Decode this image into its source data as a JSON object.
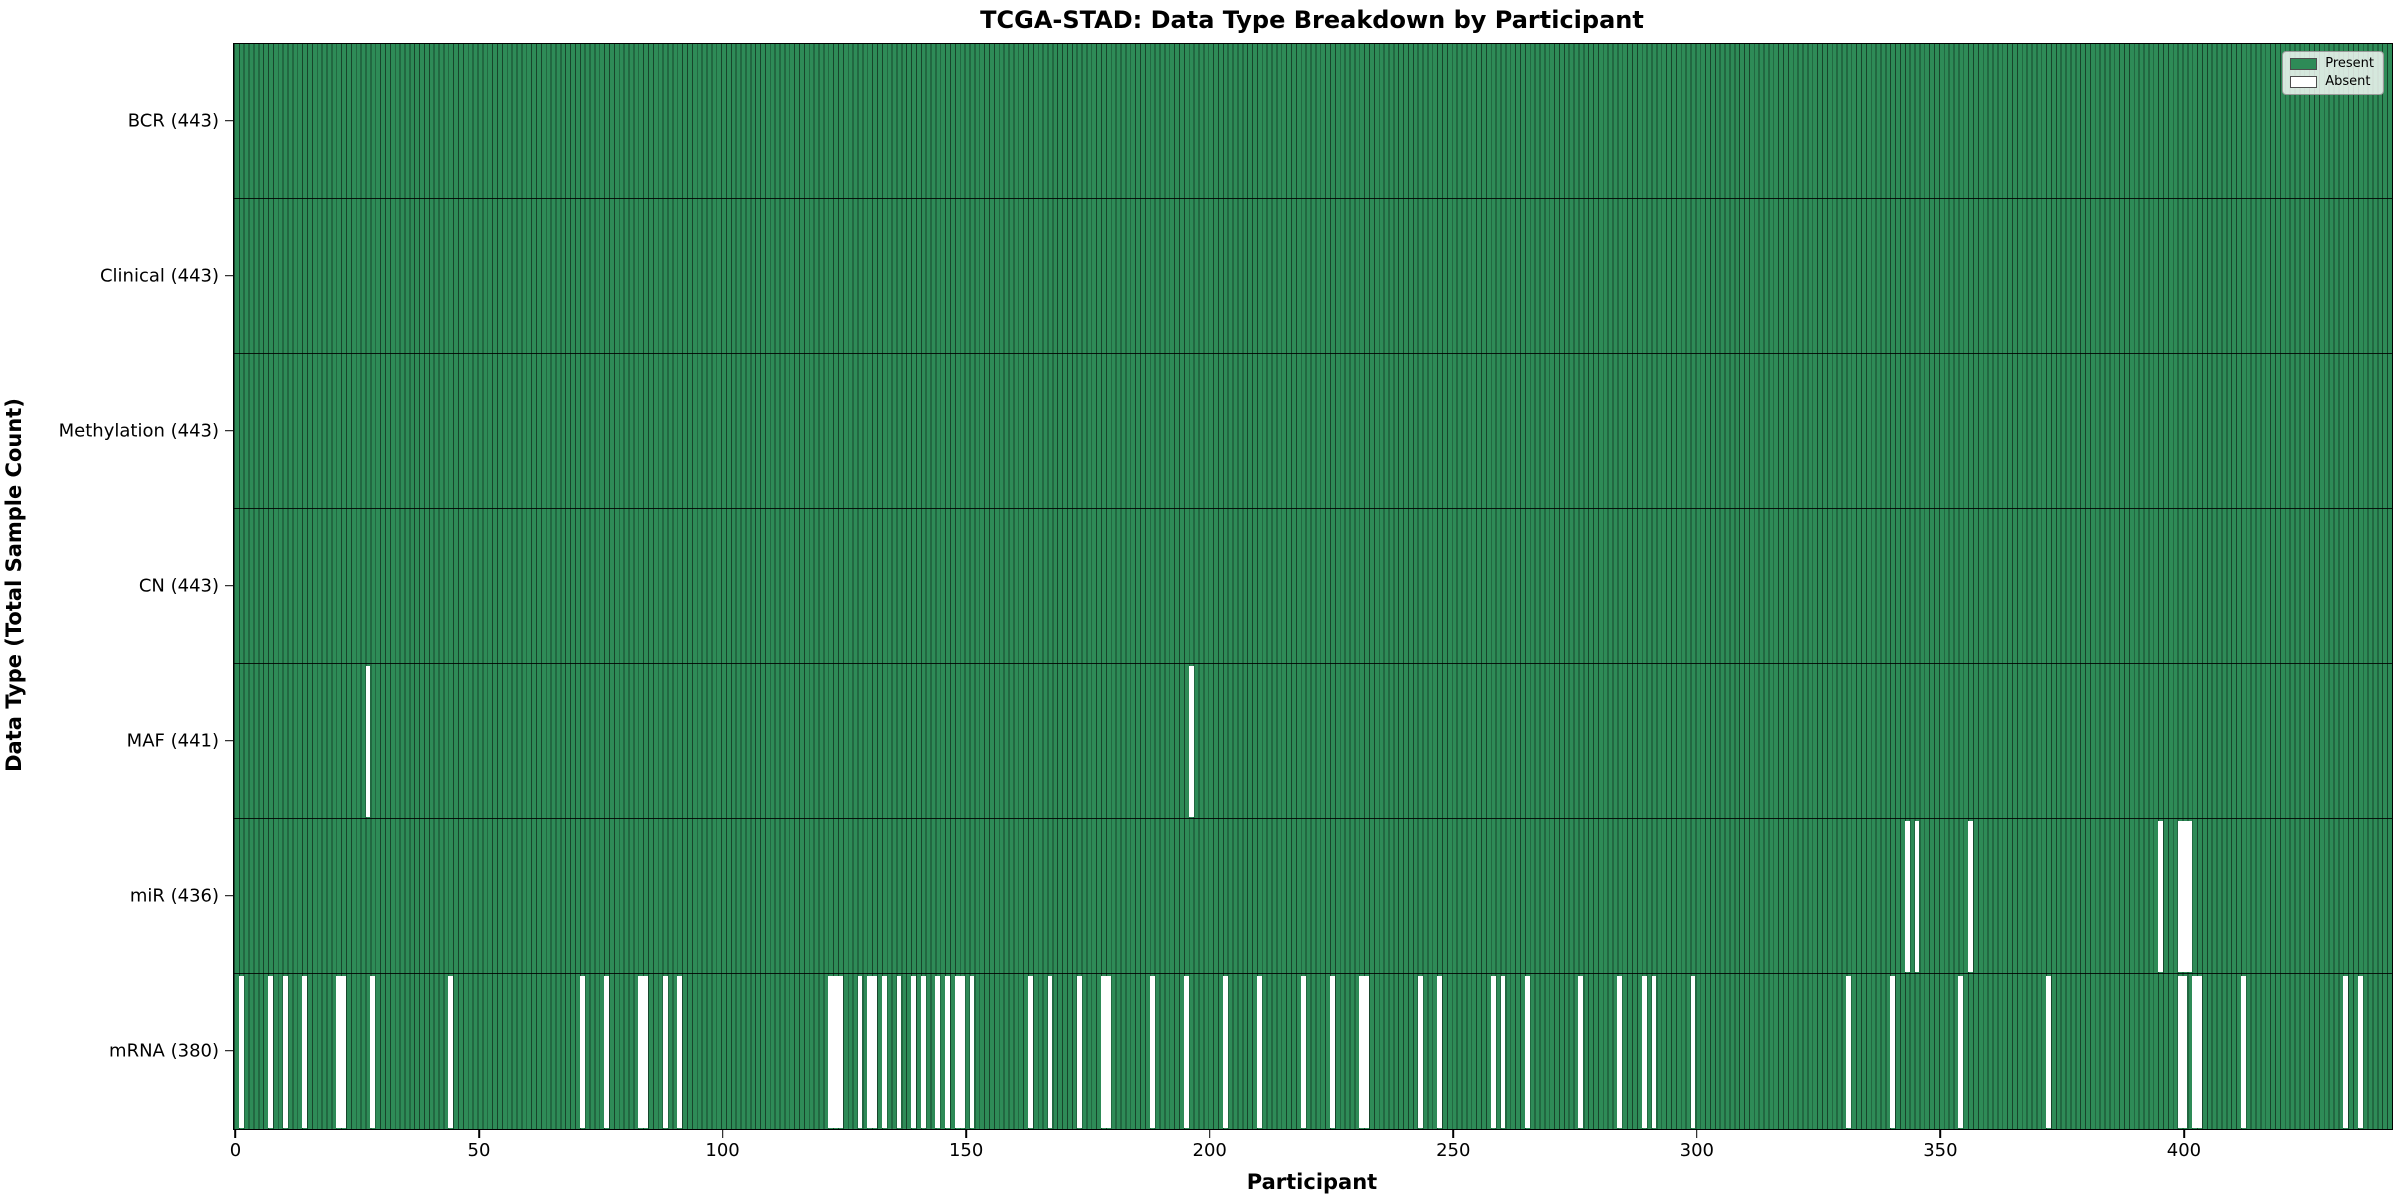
{
  "chart_data": {
    "type": "heatmap",
    "title": "TCGA-STAD: Data Type Breakdown by Participant",
    "xlabel": "Participant",
    "ylabel": "Data Type (Total Sample Count)",
    "n_participants": 443,
    "x_ticks": [
      0,
      50,
      100,
      150,
      200,
      250,
      300,
      350,
      400
    ],
    "grid": false,
    "legend_position": "upper right",
    "legend": [
      {
        "label": "Present",
        "color": "#2e8b57"
      },
      {
        "label": "Absent",
        "color": "#ffffff"
      }
    ],
    "colors": {
      "present": "#2e8b57",
      "absent": "#ffffff",
      "bar_edge": "rgba(0,0,0,0.5)"
    },
    "rows": [
      {
        "data_type": "BCR",
        "total": 443,
        "label": "BCR (443)",
        "absent_participants": []
      },
      {
        "data_type": "Clinical",
        "total": 443,
        "label": "Clinical (443)",
        "absent_participants": []
      },
      {
        "data_type": "Methylation",
        "total": 443,
        "label": "Methylation (443)",
        "absent_participants": []
      },
      {
        "data_type": "CN",
        "total": 443,
        "label": "CN (443)",
        "absent_participants": []
      },
      {
        "data_type": "MAF",
        "total": 441,
        "label": "MAF (441)",
        "absent_participants": [
          27,
          196
        ]
      },
      {
        "data_type": "miR",
        "total": 436,
        "label": "miR (436)",
        "absent_participants": [
          343,
          345,
          356,
          395,
          399,
          400,
          401
        ]
      },
      {
        "data_type": "mRNA",
        "total": 380,
        "label": "mRNA (380)",
        "absent_participants": [
          1,
          7,
          10,
          14,
          21,
          22,
          28,
          44,
          71,
          76,
          83,
          84,
          88,
          91,
          122,
          123,
          124,
          128,
          130,
          131,
          133,
          136,
          139,
          141,
          144,
          146,
          148,
          149,
          151,
          163,
          167,
          173,
          178,
          179,
          188,
          195,
          203,
          210,
          219,
          225,
          231,
          232,
          243,
          247,
          258,
          260,
          265,
          276,
          284,
          289,
          291,
          299,
          331,
          340,
          354,
          372,
          399,
          400,
          402,
          403,
          412,
          433,
          436
        ]
      }
    ]
  }
}
